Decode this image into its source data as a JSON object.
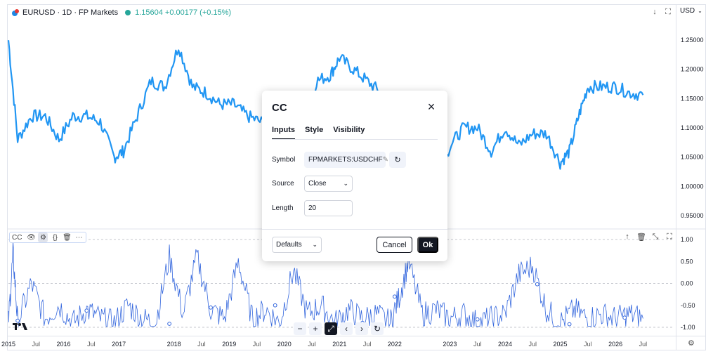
{
  "legend": {
    "symbol": "EURUSD · 1D · FP Markets",
    "quote": "1.15604 +0.00177 (+0.15%)"
  },
  "currency": "USD",
  "price_scale": [
    "1.25000",
    "1.20000",
    "1.15000",
    "1.10000",
    "1.05000",
    "1.00000",
    "0.95000"
  ],
  "indicator_scale": [
    "1.00",
    "0.50",
    "0.00",
    "-0.50",
    "-1.00"
  ],
  "time_axis": [
    "2015",
    "Jul",
    "2016",
    "Jul",
    "2017",
    "2018",
    "Jul",
    "2019",
    "Jul",
    "2020",
    "Jul",
    "2021",
    "Jul",
    "2022",
    "2023",
    "Jul",
    "2024",
    "Jul",
    "2025",
    "Jul",
    "2026",
    "Jul"
  ],
  "indicator_legend": {
    "name": "CC",
    "icons": [
      "eye-icon",
      "settings-icon",
      "source-code-icon",
      "trash-icon",
      "more-icon"
    ]
  },
  "pane_tools": [
    "arrow-up-icon",
    "trash-icon",
    "collapse-icon",
    "maximize-icon"
  ],
  "nav_bar": [
    "−",
    "+",
    "⤢",
    "‹",
    "›",
    "↻"
  ],
  "dialog": {
    "title": "CC",
    "tabs": [
      "Inputs",
      "Style",
      "Visibility"
    ],
    "active_tab": "Inputs",
    "symbol_label": "Symbol",
    "symbol_value": "FPMARKETS:USDCHF",
    "source_label": "Source",
    "source_value": "Close",
    "length_label": "Length",
    "length_value": "20",
    "defaults_label": "Defaults",
    "cancel_label": "Cancel",
    "ok_label": "Ok"
  },
  "colors": {
    "price_line": "#2196f3",
    "indicator_line": "#3366dd",
    "up": "#26a69a",
    "text": "#131722"
  },
  "chart_data": {
    "type": "line",
    "series": [
      {
        "x": [
          "2015-01",
          "2015-03",
          "2015-06",
          "2015-09",
          "2015-12",
          "2016-03",
          "2016-06",
          "2016-09",
          "2016-12",
          "2017-02",
          "2017-05",
          "2017-08",
          "2017-11",
          "2018-02",
          "2018-05",
          "2018-08",
          "2018-11",
          "2019-02",
          "2019-05",
          "2019-08",
          "2019-11",
          "2020-02",
          "2020-05",
          "2020-08",
          "2020-11",
          "2021-01",
          "2021-04",
          "2021-07",
          "2021-10",
          "2022-01",
          "2022-04",
          "2022-07",
          "2022-10",
          "2023-01",
          "2023-04",
          "2023-07",
          "2023-10",
          "2024-01",
          "2024-04",
          "2024-07",
          "2024-10",
          "2025-01",
          "2025-03",
          "2025-05",
          "2025-07",
          "2025-10",
          "2026-01",
          "2026-04",
          "2026-07"
        ],
        "values": [
          1.25,
          1.08,
          1.12,
          1.12,
          1.08,
          1.12,
          1.12,
          1.11,
          1.05,
          1.06,
          1.12,
          1.18,
          1.17,
          1.24,
          1.17,
          1.16,
          1.14,
          1.14,
          1.12,
          1.11,
          1.1,
          1.09,
          1.1,
          1.18,
          1.19,
          1.22,
          1.2,
          1.18,
          1.16,
          1.13,
          1.08,
          1.02,
          0.98,
          1.07,
          1.1,
          1.1,
          1.06,
          1.1,
          1.07,
          1.09,
          1.09,
          1.04,
          1.06,
          1.12,
          1.17,
          1.17,
          1.17,
          1.16,
          1.156
        ]
      },
      {
        "x": [
          "2015-01",
          "2015-02",
          "2015-03",
          "2015-06",
          "2015-09",
          "2015-12",
          "2016-03",
          "2016-06",
          "2016-09",
          "2016-12",
          "2017-03",
          "2017-06",
          "2017-09",
          "2017-12",
          "2018-03",
          "2018-06",
          "2018-09",
          "2018-12",
          "2019-03",
          "2019-06",
          "2019-09",
          "2019-12",
          "2020-03",
          "2020-06",
          "2020-09",
          "2020-12",
          "2021-03",
          "2021-06",
          "2021-09",
          "2021-12",
          "2022-02",
          "2022-04",
          "2022-07",
          "2022-10",
          "2023-01",
          "2023-04",
          "2023-07",
          "2023-10",
          "2024-01",
          "2024-04",
          "2024-07",
          "2024-10",
          "2025-01",
          "2025-04",
          "2025-07",
          "2025-10",
          "2026-01",
          "2026-04",
          "2026-07"
        ],
        "values": [
          -0.9,
          0.7,
          -0.9,
          0.0,
          -0.8,
          -0.5,
          -0.9,
          -0.6,
          -0.8,
          -0.9,
          -0.5,
          -0.8,
          -0.9,
          0.6,
          -0.7,
          0.6,
          -0.6,
          -0.8,
          0.5,
          -0.8,
          -0.6,
          -0.9,
          0.3,
          -0.7,
          -0.5,
          -0.9,
          -0.6,
          -0.8,
          -0.7,
          -0.9,
          -0.3,
          0.5,
          -0.7,
          -0.6,
          -0.8,
          -0.7,
          -0.9,
          -0.8,
          -0.7,
          0.2,
          0.4,
          -0.6,
          -0.9,
          -0.6,
          -0.8,
          -0.7,
          -0.8,
          -0.7,
          -0.8
        ]
      }
    ],
    "price_ylim": [
      0.92,
      1.28
    ],
    "indicator_ylim": [
      -1.1,
      1.1
    ]
  }
}
